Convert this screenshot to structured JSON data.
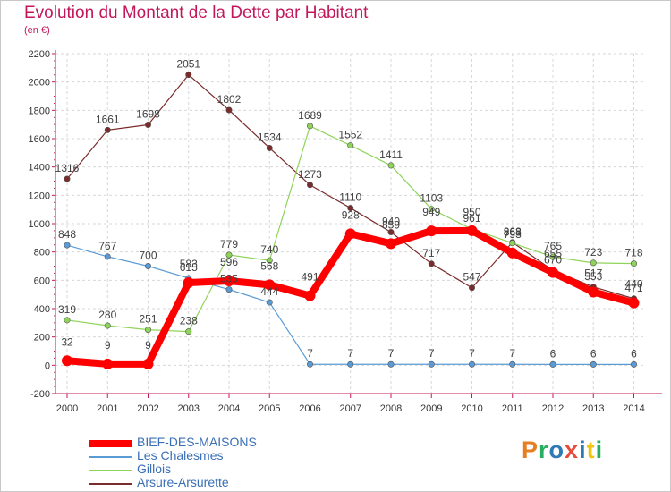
{
  "title": "Evolution du Montant de la Dette par Habitant",
  "unit": "(en €)",
  "logo": {
    "text": "Proxiti",
    "letters": [
      "P",
      "r",
      "o",
      "x",
      "i",
      "t",
      "i"
    ],
    "colors": [
      "#e67e22",
      "#27ae60",
      "#2f79b5",
      "#e74c3c",
      "#2f79b5",
      "#f1c40f",
      "#27ae60"
    ]
  },
  "chart_data": {
    "type": "line",
    "x": [
      "2000",
      "2001",
      "2002",
      "2003",
      "2004",
      "2005",
      "2006",
      "2007",
      "2008",
      "2009",
      "2010",
      "2011",
      "2012",
      "2013",
      "2014"
    ],
    "ylim": [
      -200,
      2200
    ],
    "yticks": [
      -200,
      0,
      200,
      400,
      600,
      800,
      1000,
      1200,
      1400,
      1600,
      1800,
      2000,
      2200
    ],
    "ytick_labels": [
      "-200",
      "0",
      "200",
      "400",
      "600",
      "800",
      "1000",
      "1200",
      "1400",
      "1600",
      "1800",
      "2000",
      "2200"
    ],
    "grid": true,
    "legend_position": "bottom-left",
    "series": [
      {
        "name": "BIEF-DES-MAISONS",
        "color": "#ff0000",
        "width": 8,
        "marker": 6,
        "label_shift": 9,
        "values": [
          32,
          9,
          9,
          583,
          596,
          568,
          491,
          928,
          859,
          949,
          950,
          793,
          655,
          517,
          440
        ],
        "labels": [
          "32",
          "9",
          "9",
          "583",
          "596",
          "568",
          "491",
          "928",
          "859",
          "949",
          "950",
          "793",
          "655",
          "517",
          "440"
        ]
      },
      {
        "name": "Les Chalesmes",
        "color": "#5b9bd5",
        "width": 1.2,
        "marker": 3.2,
        "label_shift": 0,
        "values": [
          848,
          767,
          700,
          615,
          535,
          444,
          7,
          7,
          7,
          7,
          7,
          7,
          6,
          6,
          6
        ],
        "labels": [
          "848",
          "767",
          "700",
          "615",
          "535",
          "444",
          "7",
          "7",
          "7",
          "7",
          "7",
          "7",
          "6",
          "6",
          "6"
        ]
      },
      {
        "name": "Gillois",
        "color": "#8fd45a",
        "width": 1.2,
        "marker": 3.2,
        "label_shift": 0,
        "values": [
          319,
          280,
          251,
          238,
          779,
          740,
          1689,
          1552,
          1411,
          1103,
          961,
          863,
          765,
          723,
          718
        ],
        "labels": [
          "319",
          "280",
          "251",
          "238",
          "779",
          "740",
          "1689",
          "1552",
          "1411",
          "1103",
          "961",
          "863",
          "765",
          "723",
          "718"
        ]
      },
      {
        "name": "Arsure-Arsurette",
        "color": "#7a2b2b",
        "width": 1.2,
        "marker": 3.2,
        "label_shift": 0,
        "values": [
          1316,
          1661,
          1698,
          2051,
          1802,
          1534,
          1273,
          1110,
          940,
          717,
          547,
          868,
          670,
          553,
          471
        ],
        "labels": [
          "1316",
          "1661",
          "1698",
          "2051",
          "1802",
          "1534",
          "1273",
          "1110",
          "940",
          "717",
          "547",
          "868",
          "670",
          "553",
          "471"
        ]
      }
    ]
  }
}
